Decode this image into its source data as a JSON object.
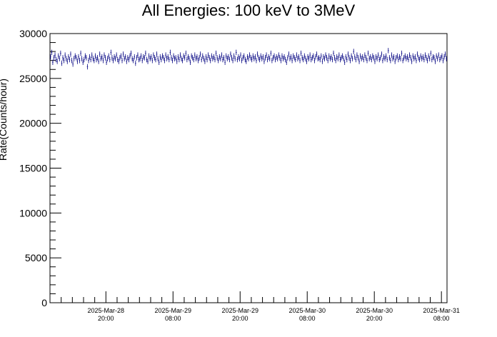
{
  "chart_data": {
    "type": "scatter",
    "title": "All Energies:  100 keV to 3MeV",
    "ylabel": "Rate(Counts/hour)",
    "xlabel": "",
    "ylim": [
      0,
      30000
    ],
    "yticks": [
      0,
      5000,
      10000,
      15000,
      20000,
      25000,
      30000
    ],
    "xlim": [
      "2025-03-28 10:00",
      "2025-03-31 09:00"
    ],
    "xticks": [
      {
        "line1": "2025-Mar-28",
        "line2": "20:00"
      },
      {
        "line1": "2025-Mar-29",
        "line2": "08:00"
      },
      {
        "line1": "2025-Mar-29",
        "line2": "20:00"
      },
      {
        "line1": "2025-Mar-30",
        "line2": "08:00"
      },
      {
        "line1": "2025-Mar-30",
        "line2": "20:00"
      },
      {
        "line1": "2025-Mar-31",
        "line2": "08:00"
      }
    ],
    "grid": false,
    "marker_color": "#000080",
    "series": [
      {
        "approx_mean": 27200,
        "approx_range": [
          25700,
          28500
        ],
        "error_bar": 300,
        "values": [
          27400,
          27900,
          26800,
          27300,
          27600,
          27100,
          26900,
          27500,
          27200,
          27800,
          26700,
          27300,
          27000,
          27600,
          27200,
          26900,
          27400,
          27100,
          27700,
          27000,
          26600,
          27200,
          27500,
          27300,
          26900,
          27400,
          27000,
          27800,
          27200,
          26800,
          27100,
          27500,
          27300,
          26300,
          27000,
          27400,
          27100,
          27600,
          27200,
          27000,
          27500,
          27100,
          27300,
          26900,
          27700,
          27200,
          27400,
          27000,
          27600,
          27300,
          26800,
          27200,
          27500,
          27100,
          27900,
          27300,
          27000,
          27400,
          27200,
          27600,
          27100,
          26900,
          27300,
          27500,
          27000,
          27700,
          27200,
          27400,
          26900,
          27300,
          27100,
          27500,
          27800,
          27200,
          27000,
          27400,
          26700,
          27300,
          27600,
          27100,
          27200,
          27500,
          27000,
          27400,
          27300,
          27800,
          27100,
          26900,
          27500,
          27200,
          27400,
          27000,
          27600,
          27300,
          27100,
          27700,
          27200,
          26800,
          27400,
          27100,
          27500,
          27300,
          27000,
          27600,
          27200,
          27400,
          27100,
          27900,
          27300,
          27000,
          27500,
          27200,
          27300,
          26900,
          27400,
          27100,
          27600,
          27200,
          27000,
          27500,
          27300,
          27800,
          27100,
          27400,
          27200,
          26800,
          27500,
          27300,
          27100,
          27600,
          27200,
          27400,
          27000,
          27300,
          27700,
          27100,
          27500,
          27200,
          26900,
          27400,
          27100,
          27600,
          27300,
          27000,
          27500,
          27200,
          27400,
          27100,
          27800,
          27300,
          27000,
          27400,
          27200,
          27600,
          27100,
          27300,
          26800,
          27500,
          27200,
          27400,
          27100,
          27700,
          27300,
          27000,
          27500,
          27200,
          27900,
          27100,
          27400,
          27200,
          27600,
          27000,
          27300,
          27500,
          27100,
          26900,
          27400,
          27200,
          27600,
          27300,
          27100,
          27500,
          27200,
          27400,
          27000,
          27700,
          27300,
          27100,
          27500,
          27200,
          27400,
          26900,
          27300,
          27600,
          27100,
          27400,
          27200,
          27800,
          27000,
          27300,
          27500,
          27100,
          27400,
          27200,
          27600,
          27300,
          27000,
          27500,
          27200,
          27400,
          27100,
          26800,
          27300,
          27700,
          27200,
          27400,
          27000,
          27500,
          27300,
          27100,
          27600,
          27200,
          27400,
          27000,
          27800,
          27300,
          27100,
          27500,
          27200,
          26900,
          27400,
          27200,
          27600,
          27100,
          27300,
          27500,
          27000,
          27400,
          27700,
          27200,
          27300,
          27100,
          27500,
          26900,
          27400,
          27200,
          27600,
          27300,
          27000,
          27500,
          27200,
          27400,
          27100,
          27800,
          27300,
          27000,
          27400,
          27200,
          27600,
          27100,
          27300,
          27500,
          27200,
          26800,
          27400,
          27100,
          27700,
          27300,
          27000,
          27500,
          27200,
          28000,
          27400,
          27100,
          27600,
          27300,
          26900,
          27500,
          27200,
          27400,
          27100,
          27600,
          27300,
          27000,
          27800,
          27200,
          27400,
          27100,
          27500,
          27300,
          26900,
          27400,
          27200,
          27600,
          27100,
          27300,
          27700,
          27000,
          27400,
          27200,
          27500,
          27100,
          28100,
          27300,
          27000,
          27600,
          27200,
          27400,
          26900,
          27300,
          27500,
          27100,
          27400,
          27200,
          27800,
          27000,
          27300,
          27500,
          27200,
          27400,
          27100,
          27600,
          27300,
          26900,
          27500,
          27200,
          27400,
          27000,
          27700,
          27300,
          27100,
          27500,
          27200,
          27400,
          27100,
          27600,
          27300,
          27000,
          27500,
          27200,
          27800,
          27100,
          27400,
          27300,
          26900,
          27500,
          27200,
          27600,
          27100,
          27300,
          27500,
          27000,
          27400,
          27700,
          27200
        ]
      }
    ]
  }
}
